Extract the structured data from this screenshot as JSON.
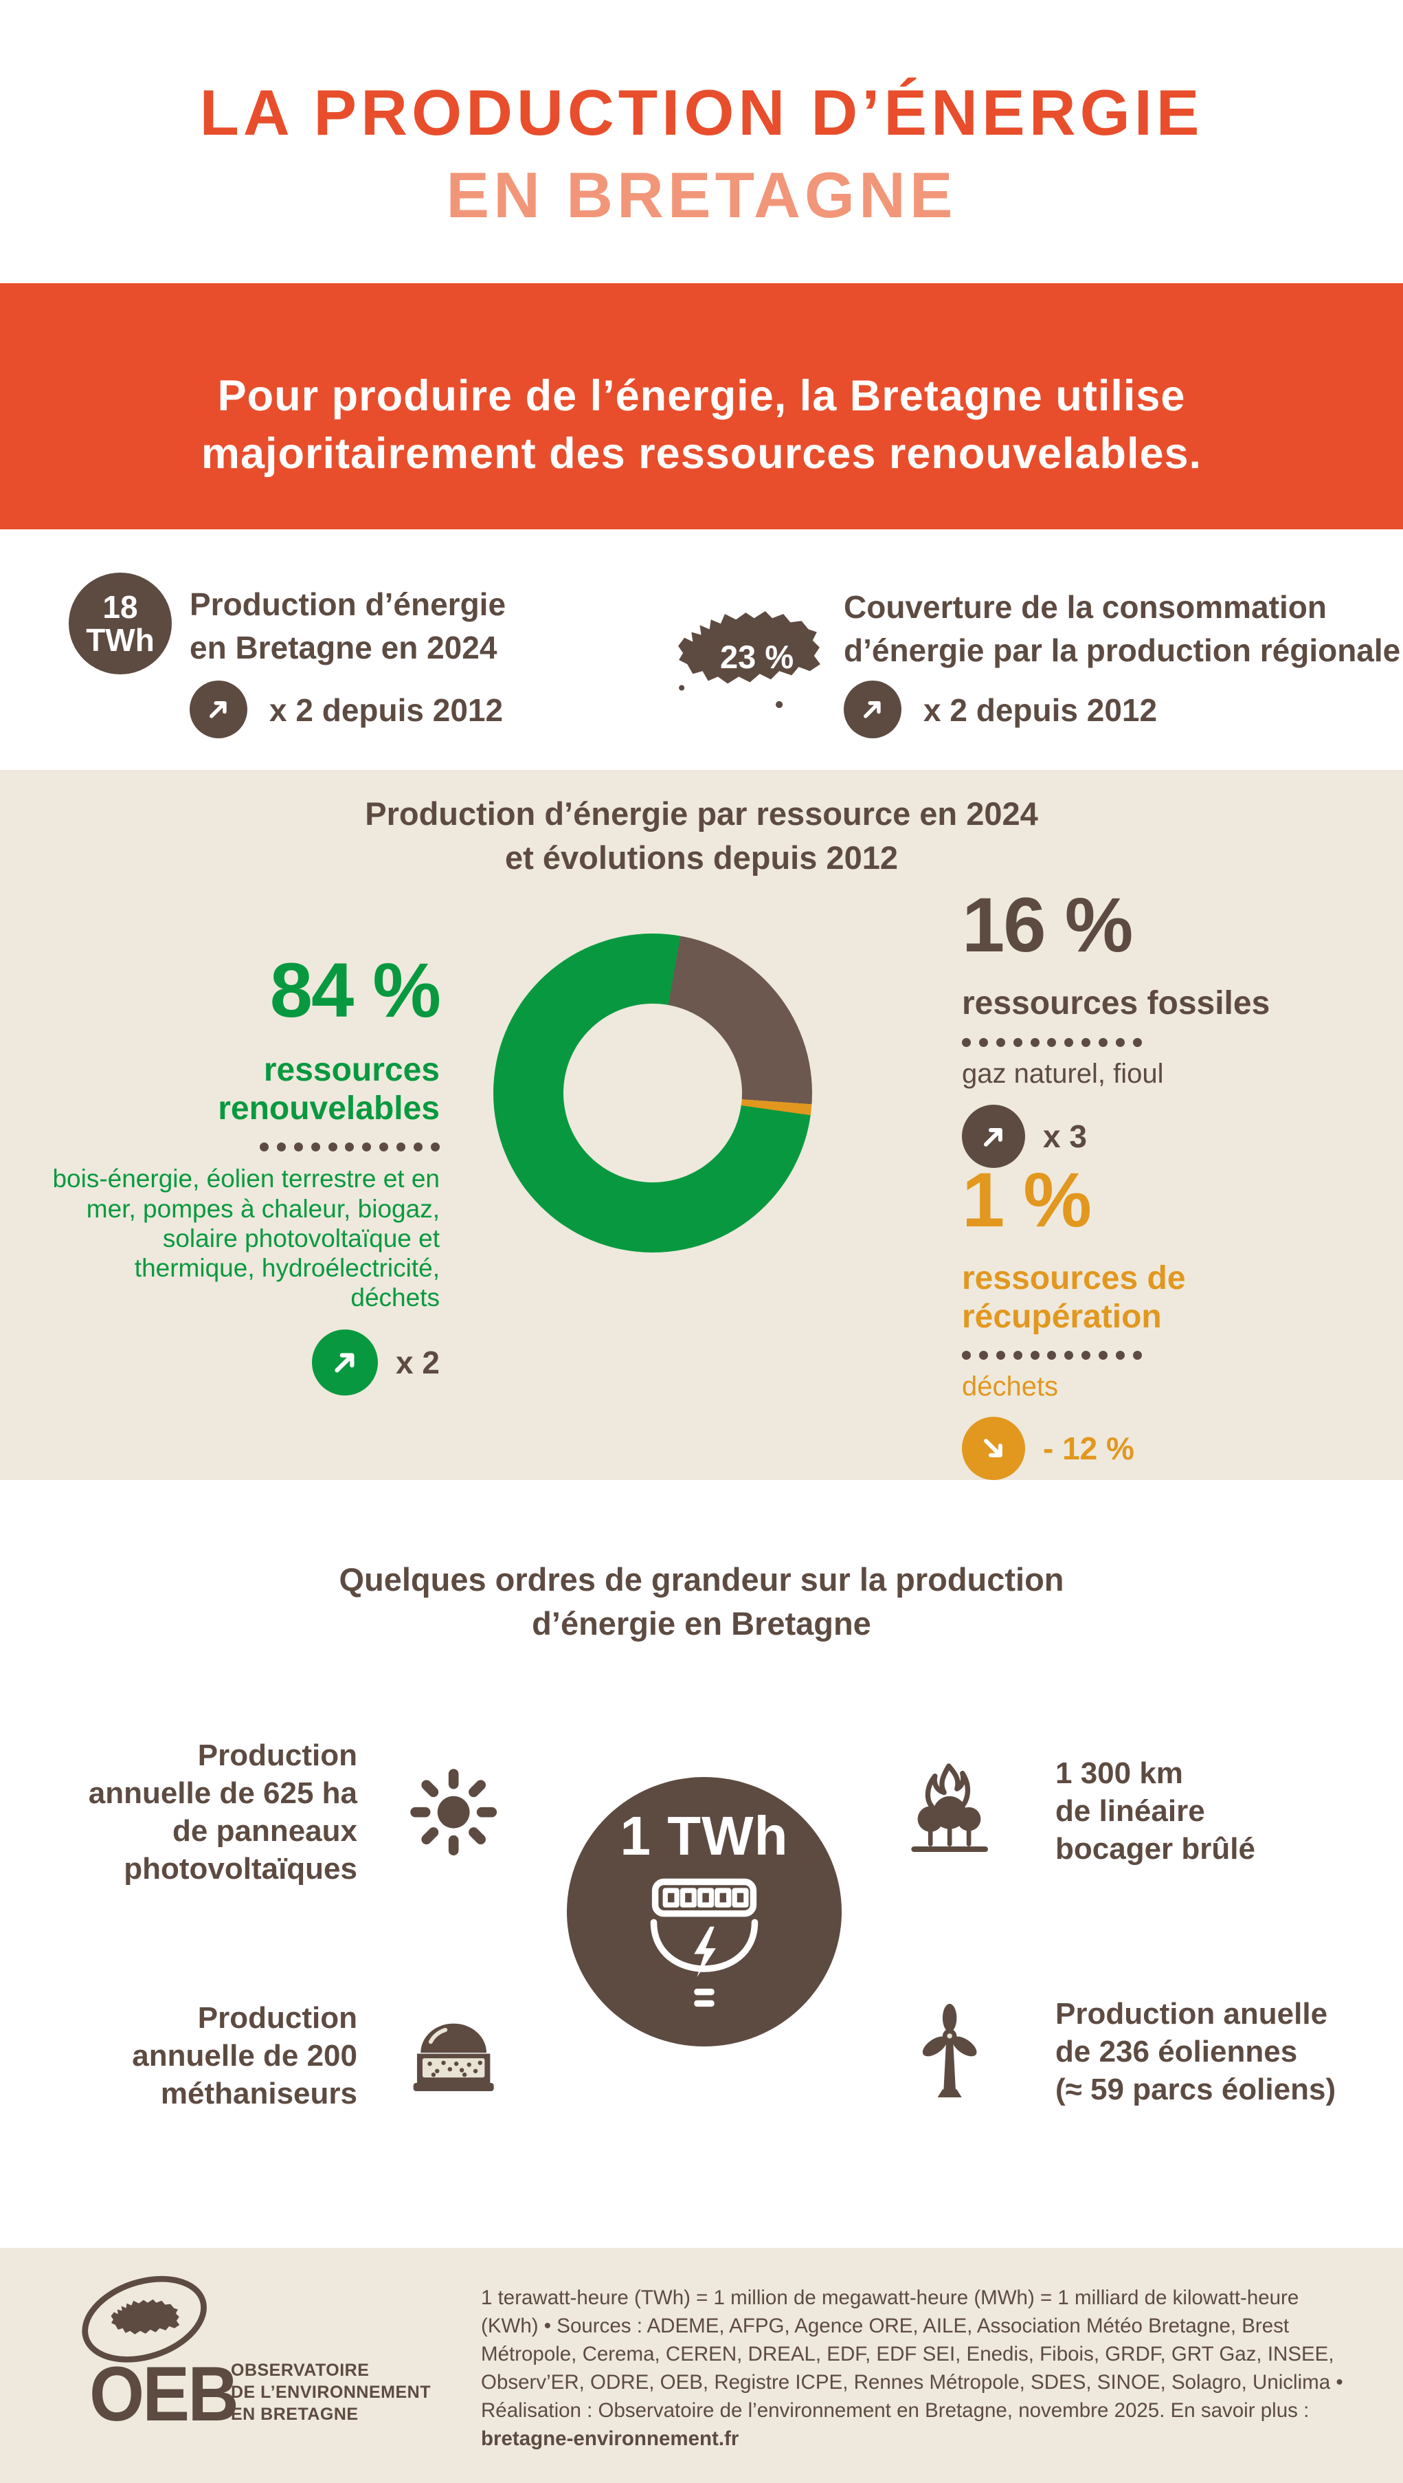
{
  "colors": {
    "accent": "#e84e2c",
    "salmon": "#f29679",
    "brown": "#5d4b42",
    "donut_brown": "#6d5850",
    "green": "#089940",
    "orange": "#e2971f",
    "beige": "#eee9dc",
    "circle_beige": "#e8e3d3"
  },
  "header": {
    "title_line1": "LA PRODUCTION D’ÉNERGIE",
    "title_line2": "EN BRETAGNE"
  },
  "banner": {
    "line1": "Pour produire de l’énergie, la Bretagne utilise",
    "line2": "majoritairement des ressources renouvelables."
  },
  "stats": {
    "left": {
      "value": "18",
      "unit": "TWh",
      "label_line1": "Production d’énergie",
      "label_line2": "en Bretagne en 2024",
      "trend": "x 2 depuis 2012"
    },
    "right": {
      "value": "23 %",
      "label_line1": "Couverture de la consommation",
      "label_line2": "d’énergie par la production régionale",
      "trend": "x 2 depuis 2012"
    }
  },
  "chart_section": {
    "title_line1": "Production d’énergie par ressource en 2024",
    "title_line2": "et évolutions depuis 2012"
  },
  "chart_data": {
    "type": "pie",
    "donut": true,
    "hole_ratio": 0.56,
    "title": "Production d’énergie par ressource en 2024 et évolutions depuis 2012",
    "unit": "%",
    "segments": [
      {
        "id": "fossil",
        "label": "ressources fossiles",
        "value_pct": 16,
        "color": "#6d5850",
        "start_deg": 10,
        "end_deg": 94,
        "evolution_since_2012": "x 3",
        "examples": "gaz naturel, fioul"
      },
      {
        "id": "recovery",
        "label": "ressources de récupération",
        "value_pct": 1,
        "color": "#e2971f",
        "start_deg": 94,
        "end_deg": 98,
        "evolution_since_2012": "- 12 %",
        "examples": "déchets"
      },
      {
        "id": "renewable",
        "label": "ressources renouvelables",
        "value_pct": 84,
        "color": "#089940",
        "start_deg": 98,
        "end_deg": 370,
        "evolution_since_2012": "x 2",
        "examples": "bois-énergie, éolien terrestre et en mer, pompes à chaleur, biogaz, solaire photovoltaïque et thermique, hydroélectricité, déchets"
      }
    ],
    "legend_position": "sides"
  },
  "legend": {
    "renewable": {
      "pct": "84 %",
      "name_line1": "ressources",
      "name_line2": "renouvelables",
      "detail": "bois-énergie, éolien terrestre et en mer, pompes à chaleur, biogaz, solaire photovoltaïque et thermique, hydroélectricité, déchets",
      "trend": "x 2"
    },
    "fossil": {
      "pct": "16 %",
      "name": "ressources fossiles",
      "detail": "gaz naturel, fioul",
      "trend": "x 3"
    },
    "recovery": {
      "pct": "1 %",
      "name_line1": "ressources de",
      "name_line2": "récupération",
      "detail": "déchets",
      "trend": "- 12 %"
    }
  },
  "magnitude": {
    "title_line1": "Quelques ordres de grandeur sur la production",
    "title_line2": "d’énergie en Bretagne",
    "center_label": "1 TWh",
    "items": [
      {
        "id": "solar",
        "lines": [
          "Production",
          "annuelle de 625 ha",
          "de panneaux",
          "photovoltaïques"
        ]
      },
      {
        "id": "bocage",
        "lines": [
          "1 300 km",
          "de linéaire",
          "bocager brûlé"
        ]
      },
      {
        "id": "methanizer",
        "lines": [
          "Production",
          "annuelle de 200",
          "méthaniseurs"
        ]
      },
      {
        "id": "wind",
        "lines": [
          "Production anuelle",
          "de 236 éoliennes",
          "(≈ 59 parcs éoliens)"
        ]
      }
    ]
  },
  "footer": {
    "logo": {
      "acronym": "OEB",
      "caption_line1": "OBSERVATOIRE",
      "caption_line2": "DE L’ENVIRONNEMENT",
      "caption_line3": "EN BRETAGNE"
    },
    "sources_text": "1 terawatt-heure (TWh) = 1 million de megawatt-heure (MWh) = 1 milliard de kilowatt-heure (KWh) • Sources : ADEME, AFPG, Agence ORE, AILE, Association Météo Bretagne, Brest Métropole, Cerema, CEREN, DREAL, EDF, EDF SEI, Enedis, Fibois, GRDF, GRT Gaz, INSEE, Observ’ER, ODRE, OEB, Registre ICPE, Rennes Métropole, SDES, SINOE, Solagro, Uniclima • Réalisation : Observatoire de l’environnement en Bretagne, novembre 2025. En savoir plus : ",
    "link": "bretagne-environnement.fr"
  }
}
